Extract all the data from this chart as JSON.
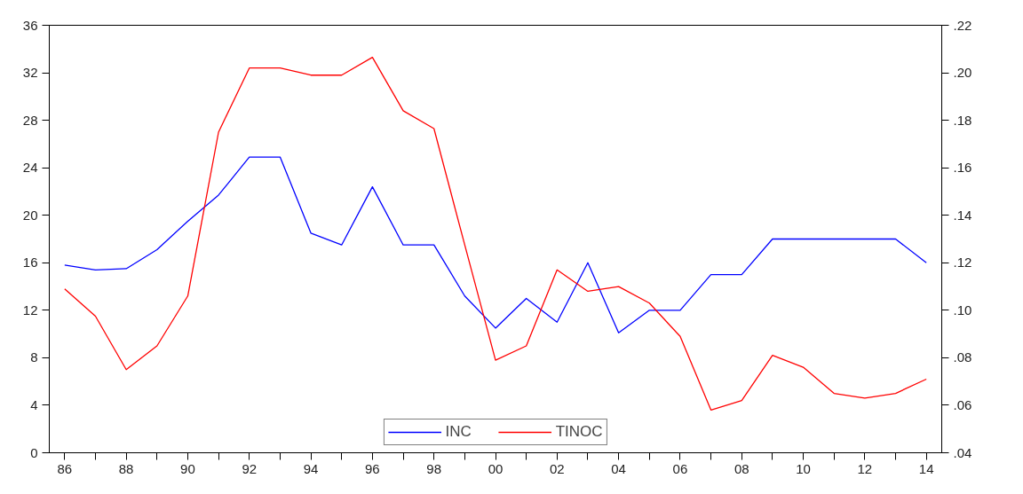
{
  "chart_data": {
    "type": "line",
    "x": [
      1986,
      1987,
      1988,
      1989,
      1990,
      1991,
      1992,
      1993,
      1994,
      1995,
      1996,
      1997,
      1998,
      1999,
      2000,
      2001,
      2002,
      2003,
      2004,
      2005,
      2006,
      2007,
      2008,
      2009,
      2010,
      2011,
      2012,
      2013,
      2014
    ],
    "series": [
      {
        "name": "INC",
        "color": "#0000ff",
        "values": [
          15.8,
          15.4,
          15.5,
          17.1,
          19.5,
          21.7,
          24.9,
          24.9,
          18.5,
          17.5,
          22.4,
          17.5,
          17.5,
          13.2,
          10.5,
          13.0,
          11.0,
          16.0,
          10.1,
          12.0,
          12.0,
          15.0,
          15.0,
          18.0,
          18.0,
          18.0,
          18.0,
          18.0,
          16.0
        ]
      },
      {
        "name": "TINOC",
        "color": "#ff0000",
        "axis": "y2",
        "values": [
          0.109,
          0.0975,
          0.075,
          0.085,
          0.106,
          0.175,
          0.202,
          0.202,
          0.199,
          0.199,
          0.2065,
          0.184,
          0.1765,
          0.1275,
          0.079,
          0.085,
          0.117,
          0.108,
          0.11,
          0.103,
          0.089,
          0.058,
          0.062,
          0.081,
          0.076,
          0.065,
          0.063,
          0.065,
          0.071
        ]
      }
    ],
    "xlim": [
      1985.5,
      2014.5
    ],
    "xticks": [
      {
        "value": 1986,
        "label": "86"
      },
      {
        "value": 1987,
        "label": null
      },
      {
        "value": 1988,
        "label": "88"
      },
      {
        "value": 1989,
        "label": null
      },
      {
        "value": 1990,
        "label": "90"
      },
      {
        "value": 1991,
        "label": null
      },
      {
        "value": 1992,
        "label": "92"
      },
      {
        "value": 1993,
        "label": null
      },
      {
        "value": 1994,
        "label": "94"
      },
      {
        "value": 1995,
        "label": null
      },
      {
        "value": 1996,
        "label": "96"
      },
      {
        "value": 1997,
        "label": null
      },
      {
        "value": 1998,
        "label": "98"
      },
      {
        "value": 1999,
        "label": null
      },
      {
        "value": 2000,
        "label": "00"
      },
      {
        "value": 2001,
        "label": null
      },
      {
        "value": 2002,
        "label": "02"
      },
      {
        "value": 2003,
        "label": null
      },
      {
        "value": 2004,
        "label": "04"
      },
      {
        "value": 2005,
        "label": null
      },
      {
        "value": 2006,
        "label": "06"
      },
      {
        "value": 2007,
        "label": null
      },
      {
        "value": 2008,
        "label": "08"
      },
      {
        "value": 2009,
        "label": null
      },
      {
        "value": 2010,
        "label": "10"
      },
      {
        "value": 2011,
        "label": null
      },
      {
        "value": 2012,
        "label": "12"
      },
      {
        "value": 2013,
        "label": null
      },
      {
        "value": 2014,
        "label": "14"
      }
    ],
    "ylim": [
      0,
      36
    ],
    "yticks": [
      0,
      4,
      8,
      12,
      16,
      20,
      24,
      28,
      32,
      36
    ],
    "y2lim": [
      0.04,
      0.22
    ],
    "y2ticks": [
      {
        "value": 0.04,
        "label": ".04"
      },
      {
        "value": 0.06,
        "label": ".06"
      },
      {
        "value": 0.08,
        "label": ".08"
      },
      {
        "value": 0.1,
        "label": ".10"
      },
      {
        "value": 0.12,
        "label": ".12"
      },
      {
        "value": 0.14,
        "label": ".14"
      },
      {
        "value": 0.16,
        "label": ".16"
      },
      {
        "value": 0.18,
        "label": ".18"
      },
      {
        "value": 0.2,
        "label": ".20"
      },
      {
        "value": 0.22,
        "label": ".22"
      }
    ],
    "legend": "bottom",
    "grid": false,
    "line_style": "solid"
  }
}
